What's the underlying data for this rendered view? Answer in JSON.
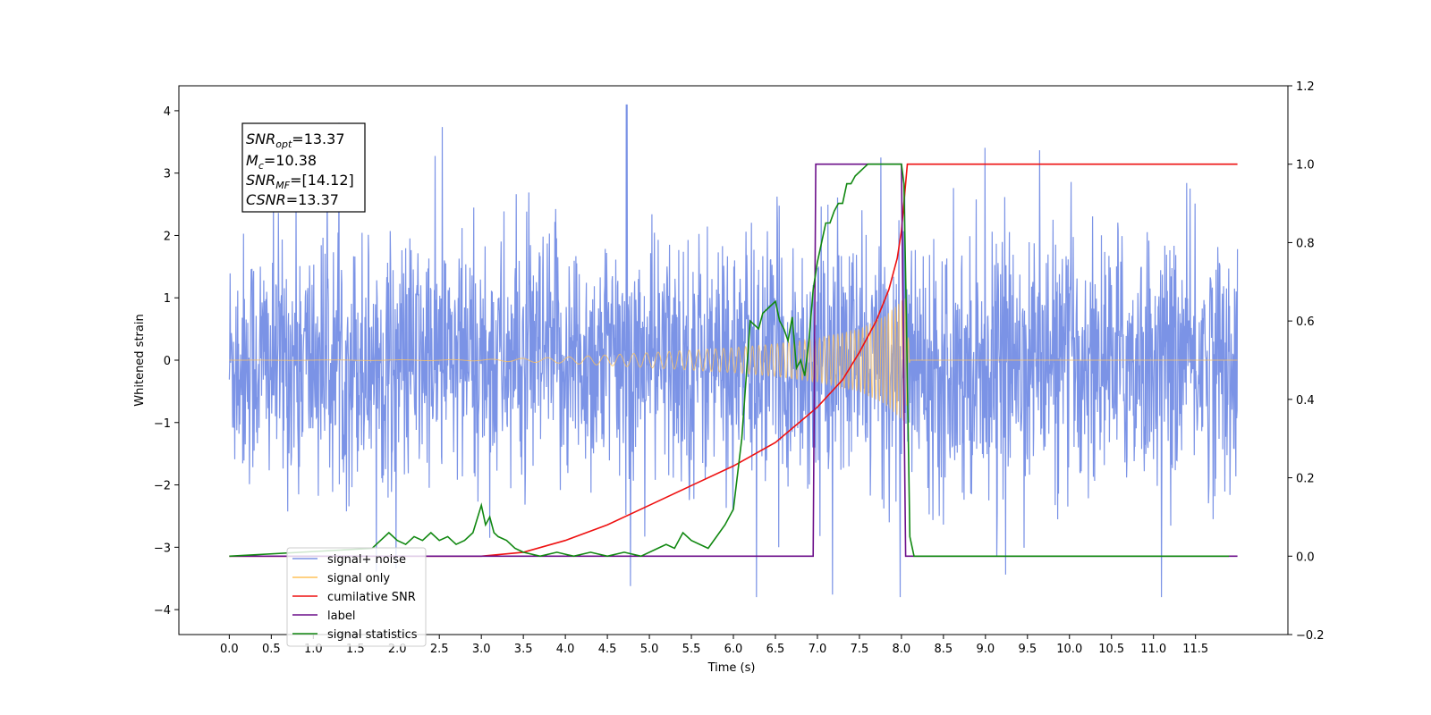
{
  "chart_data": {
    "type": "line",
    "xlabel": "Time (s)",
    "ylabel": "Whitened strain",
    "xlim": [
      -0.6,
      12.6
    ],
    "ylim": [
      -4.4,
      4.4
    ],
    "y2lim": [
      -0.2,
      1.2
    ],
    "x_ticks": [
      0.0,
      0.5,
      1.0,
      1.5,
      2.0,
      2.5,
      3.0,
      3.5,
      4.0,
      4.5,
      5.0,
      5.5,
      6.0,
      6.5,
      7.0,
      7.5,
      8.0,
      8.5,
      9.0,
      9.5,
      10.0,
      10.5,
      11.0,
      11.5
    ],
    "x_tick_labels": [
      "0.0",
      "0.5",
      "1.0",
      "1.5",
      "2.0",
      "2.5",
      "3.0",
      "3.5",
      "4.0",
      "4.5",
      "5.0",
      "5.5",
      "6.0",
      "6.5",
      "7.0",
      "7.5",
      "8.0",
      "8.5",
      "9.0",
      "9.5",
      "10.0",
      "10.5",
      "11.0",
      "11.5"
    ],
    "y_ticks": [
      -4,
      -3,
      -2,
      -1,
      0,
      1,
      2,
      3,
      4
    ],
    "y_tick_labels": [
      "−4",
      "−3",
      "−2",
      "−1",
      "0",
      "1",
      "2",
      "3",
      "4"
    ],
    "y2_ticks": [
      -0.2,
      0.0,
      0.2,
      0.4,
      0.6,
      0.8,
      1.0,
      1.2
    ],
    "y2_tick_labels": [
      "−0.2",
      "0.0",
      "0.2",
      "0.4",
      "0.6",
      "0.8",
      "1.0",
      "1.2"
    ],
    "grid": false,
    "legend_position": "lower-left",
    "annotations": [
      {
        "prefix": "SNR",
        "sub": "opt",
        "value": "=13.37"
      },
      {
        "prefix": "M",
        "sub": "c",
        "value": "=10.38"
      },
      {
        "prefix": "SNR",
        "sub": "MF",
        "value": "=[14.12]"
      },
      {
        "prefix": "CSNR",
        "sub": "",
        "value": "=13.37"
      }
    ],
    "series": [
      {
        "name": "signal+ noise",
        "axis": "left",
        "color": "#7b93e6",
        "description_of_shape": "dense gaussian-like noise roughly between -2.5 and 2.5 with spikes to about ±3.5 over 0–12 s",
        "x_range": [
          0.0,
          12.0
        ],
        "noise_amplitude": 1.0
      },
      {
        "name": "signal only",
        "axis": "left",
        "color": "#ffc259",
        "chirp_envelope": {
          "x": [
            0.0,
            3.0,
            4.0,
            5.0,
            6.0,
            6.5,
            7.0,
            7.5,
            7.8,
            8.0,
            8.05,
            8.1,
            12.0
          ],
          "y": [
            0.0,
            0.01,
            0.05,
            0.12,
            0.2,
            0.26,
            0.35,
            0.5,
            0.7,
            0.95,
            1.0,
            0.0,
            0.0
          ]
        }
      },
      {
        "name": "cumilative SNR",
        "axis": "right",
        "color": "#ee1111",
        "x": [
          0.0,
          2.5,
          3.0,
          3.5,
          4.0,
          4.5,
          5.0,
          5.5,
          6.0,
          6.5,
          7.0,
          7.3,
          7.5,
          7.7,
          7.85,
          7.95,
          8.0,
          8.07,
          12.0
        ],
        "y": [
          0.0,
          0.0,
          0.0,
          0.01,
          0.04,
          0.08,
          0.13,
          0.18,
          0.23,
          0.29,
          0.38,
          0.45,
          0.52,
          0.6,
          0.68,
          0.76,
          0.83,
          1.0,
          1.0
        ]
      },
      {
        "name": "label",
        "axis": "right",
        "color": "#6c0f8a",
        "x": [
          0.0,
          6.95,
          6.98,
          8.0,
          8.05,
          12.0
        ],
        "y": [
          0.0,
          0.0,
          1.0,
          1.0,
          0.0,
          0.0
        ]
      },
      {
        "name": "signal statistics",
        "axis": "right",
        "color": "#118811",
        "x": [
          0.0,
          1.7,
          1.8,
          1.9,
          2.0,
          2.1,
          2.2,
          2.3,
          2.4,
          2.5,
          2.6,
          2.7,
          2.8,
          2.9,
          3.0,
          3.05,
          3.1,
          3.15,
          3.2,
          3.3,
          3.4,
          3.5,
          3.7,
          3.9,
          4.1,
          4.3,
          4.5,
          4.7,
          4.9,
          5.1,
          5.2,
          5.3,
          5.4,
          5.5,
          5.6,
          5.7,
          5.8,
          5.9,
          6.0,
          6.1,
          6.2,
          6.3,
          6.35,
          6.4,
          6.5,
          6.55,
          6.6,
          6.65,
          6.7,
          6.75,
          6.8,
          6.85,
          6.9,
          6.95,
          7.0,
          7.05,
          7.1,
          7.15,
          7.2,
          7.25,
          7.3,
          7.35,
          7.4,
          7.45,
          7.5,
          7.55,
          7.6,
          7.7,
          7.8,
          7.9,
          8.0,
          8.03,
          8.06,
          8.1,
          8.15,
          8.2,
          11.9
        ],
        "y": [
          0.0,
          0.02,
          0.04,
          0.06,
          0.04,
          0.03,
          0.05,
          0.04,
          0.06,
          0.04,
          0.05,
          0.03,
          0.04,
          0.06,
          0.13,
          0.08,
          0.1,
          0.06,
          0.05,
          0.04,
          0.02,
          0.01,
          0.0,
          0.01,
          0.0,
          0.01,
          0.0,
          0.01,
          0.0,
          0.02,
          0.03,
          0.02,
          0.06,
          0.04,
          0.03,
          0.02,
          0.05,
          0.08,
          0.12,
          0.3,
          0.6,
          0.58,
          0.62,
          0.63,
          0.65,
          0.6,
          0.58,
          0.55,
          0.61,
          0.48,
          0.5,
          0.46,
          0.55,
          0.68,
          0.75,
          0.8,
          0.85,
          0.85,
          0.88,
          0.9,
          0.9,
          0.95,
          0.95,
          0.97,
          0.98,
          0.99,
          1.0,
          1.0,
          1.0,
          1.0,
          1.0,
          0.95,
          0.6,
          0.05,
          0.0,
          0.0,
          0.0
        ]
      }
    ]
  }
}
